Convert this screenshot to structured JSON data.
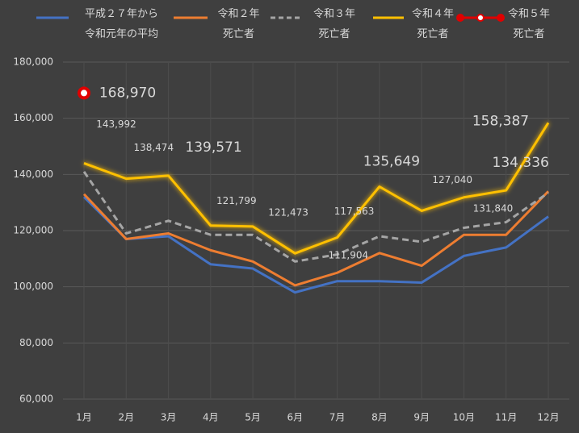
{
  "chart_data": {
    "type": "line",
    "categories": [
      "1月",
      "2月",
      "3月",
      "4月",
      "5月",
      "6月",
      "7月",
      "8月",
      "9月",
      "10月",
      "11月",
      "12月"
    ],
    "ylim": [
      60000,
      180000
    ],
    "yticks": [
      {
        "value": 60000,
        "label": "60,000"
      },
      {
        "value": 80000,
        "label": "80,000"
      },
      {
        "value": 100000,
        "label": "100,000"
      },
      {
        "value": 120000,
        "label": "120,000"
      },
      {
        "value": 140000,
        "label": "140,000"
      },
      {
        "value": 160000,
        "label": "160,000"
      },
      {
        "value": 180000,
        "label": "180,000"
      }
    ],
    "grid": true,
    "legend": "top",
    "series": [
      {
        "name": "平成２７年から\n令和元年の平均",
        "color": "#4472c4",
        "dash": false,
        "values": [
          132000,
          117000,
          118000,
          108000,
          106500,
          98000,
          102000,
          102000,
          101500,
          111000,
          114000,
          125000
        ]
      },
      {
        "name": "令和２年\n死亡者",
        "color": "#ed7d31",
        "dash": false,
        "values": [
          133000,
          117000,
          119000,
          113000,
          109000,
          100500,
          105000,
          112000,
          107500,
          118500,
          118500,
          134000
        ]
      },
      {
        "name": "令和３年\n死亡者",
        "color": "#a5a5a5",
        "dash": true,
        "values": [
          141000,
          119000,
          123500,
          118500,
          118500,
          109000,
          111500,
          118000,
          116000,
          121000,
          123000,
          133500
        ]
      },
      {
        "name": "令和４年\n死亡者",
        "color": "#ffc000",
        "dash": false,
        "glow": true,
        "values": [
          143992,
          138474,
          139571,
          121799,
          121473,
          111904,
          117563,
          135649,
          127040,
          131840,
          134336,
          158387
        ],
        "value_labels": [
          "143,992",
          "138,474",
          "139,571",
          "121,799",
          "121,473",
          "111,904",
          "117,563",
          "135,649",
          "127,040",
          "131,840",
          "134,336",
          "158,387"
        ]
      },
      {
        "name": "令和５年\n死亡者",
        "color": "#e00000",
        "dash": false,
        "marker": true,
        "values": [
          168970,
          null,
          null,
          null,
          null,
          null,
          null,
          null,
          null,
          null,
          null,
          null
        ],
        "value_labels": [
          "168,970",
          null,
          null,
          null,
          null,
          null,
          null,
          null,
          null,
          null,
          null,
          null
        ]
      }
    ]
  }
}
